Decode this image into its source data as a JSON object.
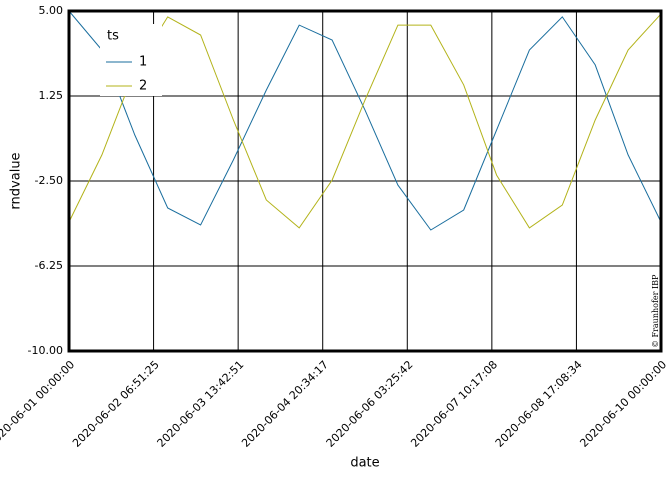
{
  "chart_data": {
    "type": "line",
    "x_label": "date",
    "y_label": "rndvalue",
    "legend_title": "ts",
    "watermark": "© Fraunhofer IBP",
    "x": [
      "2020-06-01 00:00:00",
      "2020-06-01 12:00:00",
      "2020-06-02 00:00:00",
      "2020-06-02 12:00:00",
      "2020-06-03 00:00:00",
      "2020-06-03 12:00:00",
      "2020-06-04 00:00:00",
      "2020-06-04 12:00:00",
      "2020-06-05 00:00:00",
      "2020-06-05 12:00:00",
      "2020-06-06 00:00:00",
      "2020-06-06 12:00:00",
      "2020-06-07 00:00:00",
      "2020-06-07 12:00:00",
      "2020-06-08 00:00:00",
      "2020-06-08 12:00:00",
      "2020-06-09 00:00:00",
      "2020-06-09 12:00:00",
      "2020-06-10 00:00:00"
    ],
    "series": [
      {
        "name": "1",
        "color": "#1a6e9e",
        "values": [
          5.0,
          3.28,
          -0.47,
          -3.69,
          -4.44,
          -1.57,
          1.51,
          4.38,
          3.72,
          0.63,
          -2.68,
          -4.66,
          -3.78,
          -0.25,
          3.28,
          4.74,
          2.62,
          -1.35,
          -4.31
        ]
      },
      {
        "name": "2",
        "color": "#b3b31a",
        "values": [
          -4.31,
          -1.35,
          2.4,
          4.74,
          3.94,
          0.19,
          -3.34,
          -4.57,
          -2.46,
          1.07,
          4.38,
          4.38,
          1.74,
          -2.24,
          -4.57,
          -3.56,
          0.19,
          3.28,
          4.87
        ]
      }
    ],
    "xlim": [
      "2020-06-01 00:00:00",
      "2020-06-10 00:00:00"
    ],
    "xticks": [
      "2020-06-01 00:00:00",
      "2020-06-02 06:51:25",
      "2020-06-03 13:42:51",
      "2020-06-04 20:34:17",
      "2020-06-06 03:25:42",
      "2020-06-07 10:17:08",
      "2020-06-08 17:08:34",
      "2020-06-10 00:00:00"
    ],
    "ylim": [
      -10,
      5
    ],
    "yticks": [
      {
        "value": -10,
        "label": "-10.00"
      },
      {
        "value": -6.25,
        "label": "-6.25"
      },
      {
        "value": -2.5,
        "label": "-2.50"
      },
      {
        "value": 1.25,
        "label": "1.25"
      },
      {
        "value": 5,
        "label": "5.00"
      }
    ],
    "grid": true
  }
}
